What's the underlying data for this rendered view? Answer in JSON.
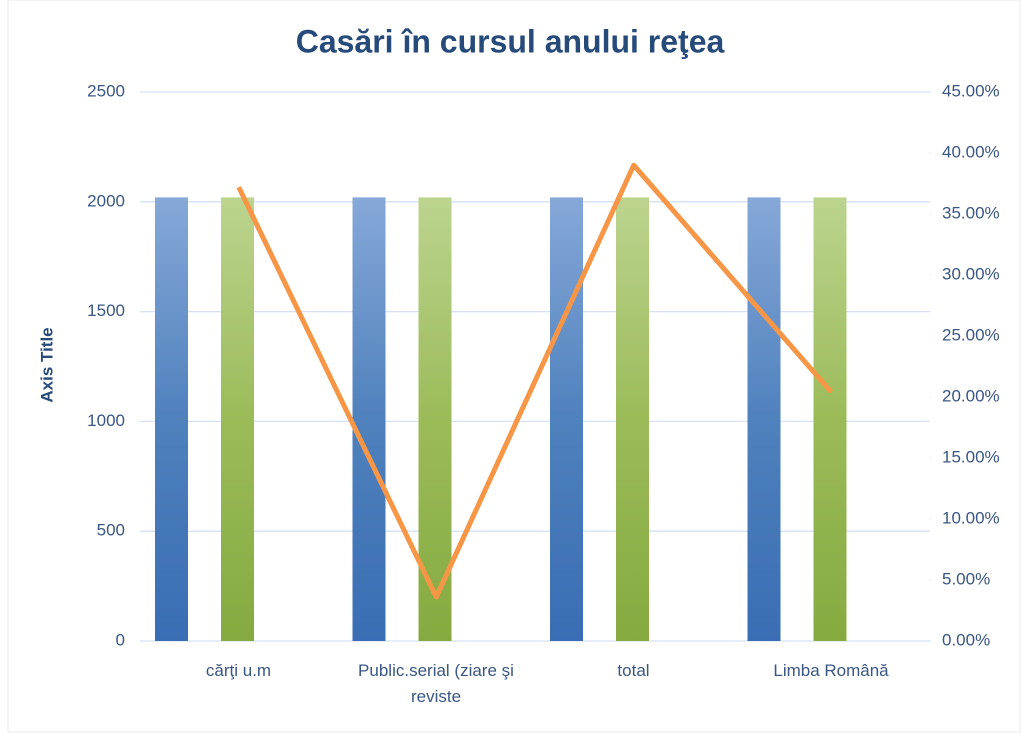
{
  "chart_data": {
    "type": "bar",
    "title": "Casări în cursul anului reţea",
    "y_axis_label": "Axis Title",
    "categories": [
      "cărţi u.m",
      "Public.serial (ziare şi reviste",
      "total",
      "Limba Română"
    ],
    "series": [
      {
        "color": "#4f81bd",
        "values": [
          2020,
          2020,
          2020,
          2020
        ]
      },
      {
        "color": "#9bbb59",
        "values": [
          2020,
          2020,
          2020,
          2020
        ]
      },
      {
        "type": "line",
        "axis": "y2",
        "color": "#f79646",
        "values": [
          37.2,
          3.6,
          39.0,
          20.4
        ]
      }
    ],
    "ylim": [
      0,
      2500
    ],
    "yticks": [
      0,
      500,
      1000,
      1500,
      2000,
      2500
    ],
    "y2lim": [
      0,
      45
    ],
    "y2ticks": [
      {
        "value": 0,
        "label": "0.00%"
      },
      {
        "value": 5,
        "label": "5.00%"
      },
      {
        "value": 10,
        "label": "10.00%"
      },
      {
        "value": 15,
        "label": "15.00%"
      },
      {
        "value": 20,
        "label": "20.00%"
      },
      {
        "value": 25,
        "label": "25.00%"
      },
      {
        "value": 30,
        "label": "30.00%"
      },
      {
        "value": 35,
        "label": "35.00%"
      },
      {
        "value": 40,
        "label": "40.00%"
      },
      {
        "value": 45,
        "label": "45.00%"
      }
    ],
    "grid": true
  }
}
